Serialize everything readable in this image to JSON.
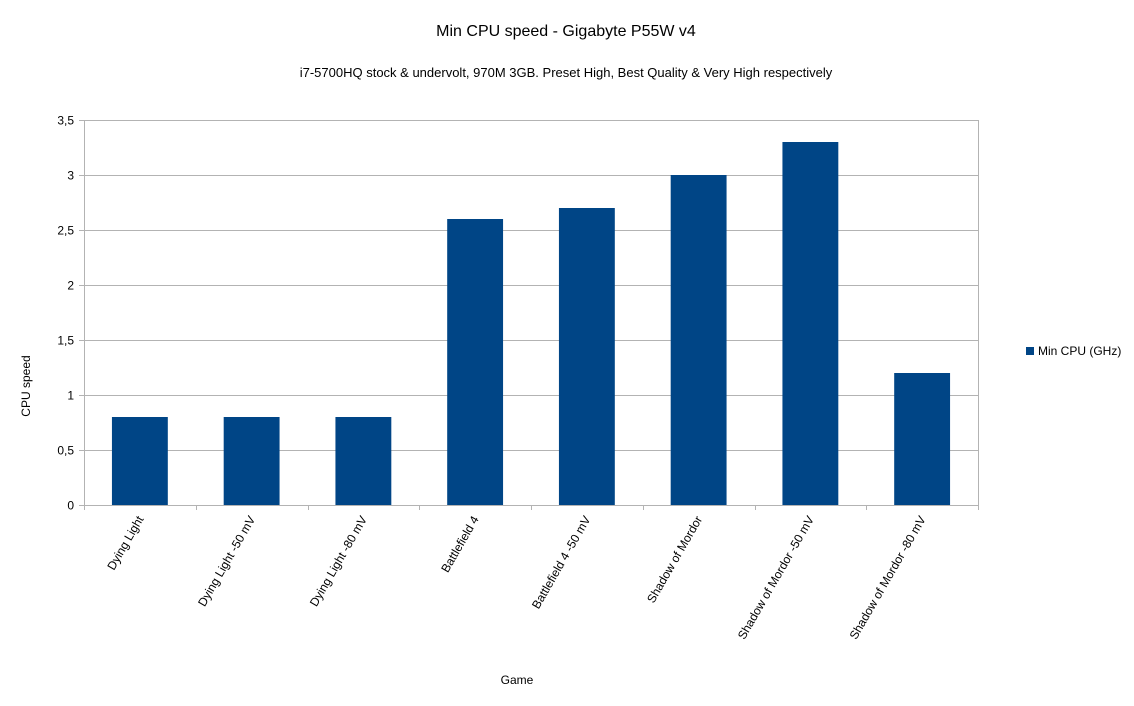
{
  "chart_data": {
    "type": "bar",
    "title": "Min CPU speed - Gigabyte P55W v4",
    "subtitle": "i7-5700HQ stock & undervolt, 970M 3GB. Preset High, Best Quality & Very High respectively",
    "xlabel": "Game",
    "ylabel": "CPU speed",
    "ylim": [
      0,
      3.5
    ],
    "yticks": [
      "0",
      "0,5",
      "1",
      "1,5",
      "2",
      "2,5",
      "3",
      "3,5"
    ],
    "grid": true,
    "legend_position": "right",
    "categories": [
      "Dying Light",
      "Dying Light -50 mV",
      "Dying Light -80 mV",
      "Battlefield 4",
      "Battlefield 4 -50 mV",
      "Shadow of Mordor",
      "Shadow of Mordor -50 mV",
      "Shadow of Mordor -80 mV"
    ],
    "series": [
      {
        "name": "Min CPU (GHz)",
        "color": "#004586",
        "values": [
          0.8,
          0.8,
          0.8,
          2.6,
          2.7,
          3.0,
          3.3,
          1.2
        ]
      }
    ]
  }
}
